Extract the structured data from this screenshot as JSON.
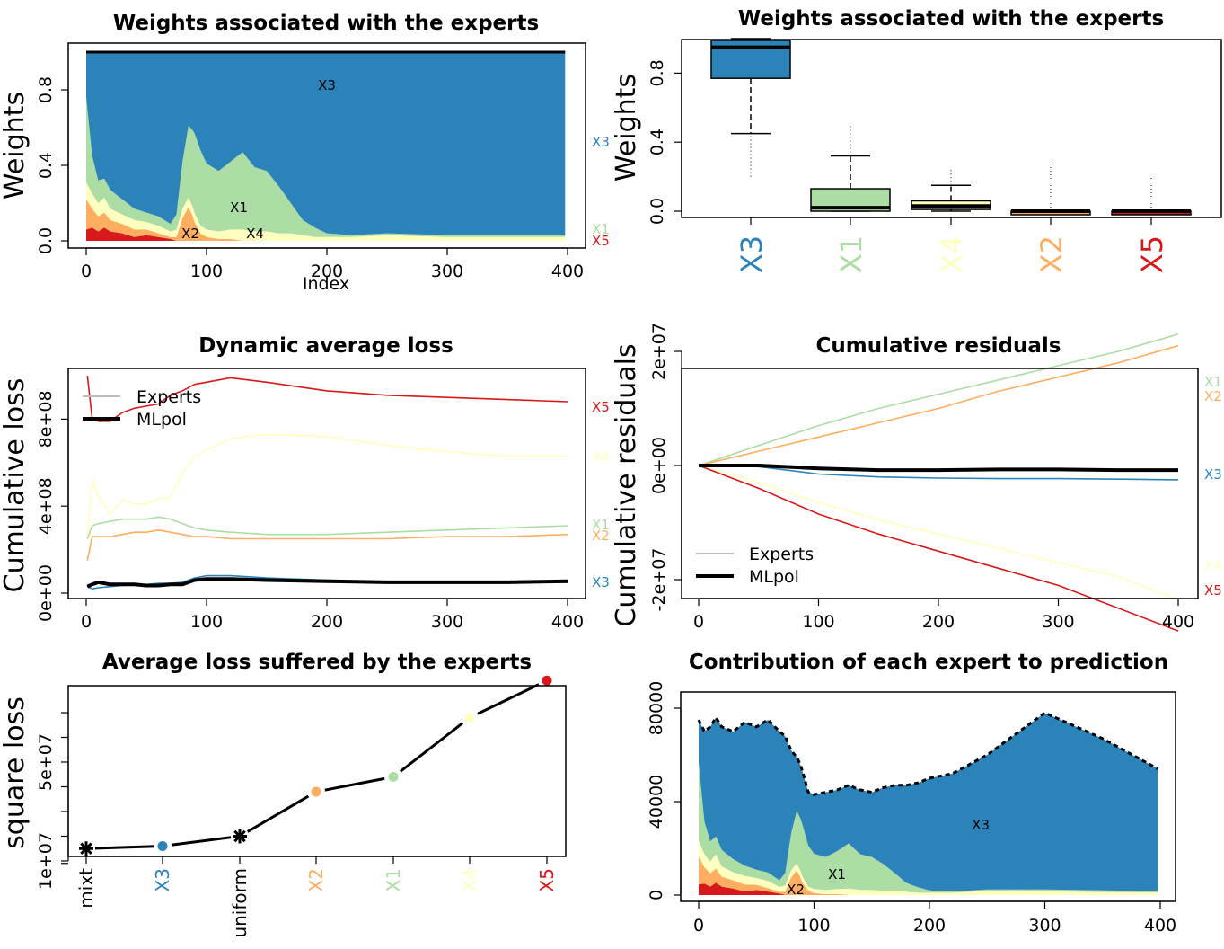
{
  "colors": {
    "X1": "#abdda4",
    "X2": "#fdae61",
    "X3": "#2b83ba",
    "X4": "#ffffbf",
    "X5": "#d7191c",
    "mlpol": "#000000",
    "experts_legend": "#bdbdbd"
  },
  "panels": {
    "p1": {
      "title": "Weights associated with the experts",
      "ylabel": "Weights",
      "xlabel": "Index",
      "xticks": [
        "0",
        "100",
        "200",
        "300",
        "400"
      ],
      "yticks": [
        "0.0",
        "0.4",
        "0.8"
      ],
      "inner_labels": {
        "X3": "X3",
        "X1": "X1",
        "X2": "X2",
        "X4": "X4"
      },
      "right_labels": {
        "X3": "X3",
        "X1": "X1",
        "X5": "X5"
      }
    },
    "p2": {
      "title": "Weights associated with the experts",
      "ylabel": "Weights",
      "yticks": [
        "0.0",
        "0.4",
        "0.8"
      ],
      "categories": [
        "X3",
        "X1",
        "X4",
        "X2",
        "X5"
      ]
    },
    "p3": {
      "title": "Dynamic average loss",
      "ylabel": "Cumulative loss",
      "xticks": [
        "0",
        "100",
        "200",
        "300",
        "400"
      ],
      "yticks": [
        "0e+00",
        "4e+08",
        "8e+08"
      ],
      "legend": [
        "Experts",
        "MLpol"
      ],
      "right_labels": {
        "X5": "X5",
        "X4": "X4",
        "X1": "X1",
        "X2": "X2",
        "X3": "X3"
      }
    },
    "p4": {
      "title": "Cumulative residuals",
      "ylabel": "Cumulative residuals",
      "xticks": [
        "0",
        "100",
        "200",
        "300",
        "400"
      ],
      "yticks": [
        "-2e+07",
        "0e+00",
        "2e+07"
      ],
      "legend": [
        "Experts",
        "MLpol"
      ],
      "right_labels": {
        "X1": "X1",
        "X2": "X2",
        "X3": "X3",
        "X4": "X4",
        "X5": "X5"
      }
    },
    "p5": {
      "title": "Average loss suffered by the experts",
      "ylabel": "square loss",
      "yticks": [
        "1e+07",
        "5e+07"
      ],
      "categories": [
        "mixt",
        "X3",
        "uniform",
        "X2",
        "X1",
        "X4",
        "X5"
      ]
    },
    "p6": {
      "title": "Contribution of each expert to prediction",
      "xticks": [
        "0",
        "100",
        "200",
        "300",
        "400"
      ],
      "yticks": [
        "0",
        "40000",
        "80000"
      ],
      "inner_labels": {
        "X3": "X3",
        "X1": "X1",
        "X2": "X2"
      }
    }
  },
  "chart_data": [
    {
      "type": "area",
      "title": "Weights associated with the experts",
      "xlabel": "Index",
      "ylabel": "Weights",
      "xlim": [
        0,
        400
      ],
      "ylim": [
        0,
        1
      ],
      "stack_order": [
        "X5",
        "X2",
        "X4",
        "X1",
        "X3"
      ],
      "x": [
        0,
        5,
        10,
        15,
        20,
        30,
        40,
        50,
        60,
        70,
        75,
        80,
        85,
        88,
        90,
        95,
        100,
        110,
        120,
        130,
        140,
        150,
        160,
        170,
        180,
        190,
        200,
        220,
        250,
        300,
        350,
        398
      ],
      "series": [
        {
          "name": "X5",
          "values": [
            0.06,
            0.07,
            0.05,
            0.07,
            0.05,
            0.04,
            0.02,
            0.03,
            0.02,
            0.01,
            0,
            0,
            0,
            0,
            0,
            0,
            0,
            0,
            0,
            0,
            0,
            0,
            0,
            0,
            0,
            0,
            0,
            0,
            0,
            0,
            0,
            0
          ]
        },
        {
          "name": "X2",
          "values": [
            0.16,
            0.1,
            0.08,
            0.08,
            0.06,
            0.05,
            0.04,
            0.03,
            0.02,
            0.01,
            0.02,
            0.12,
            0.18,
            0.14,
            0.1,
            0.04,
            0.02,
            0.01,
            0.01,
            0,
            0,
            0,
            0,
            0,
            0,
            0,
            0,
            0,
            0,
            0,
            0,
            0
          ]
        },
        {
          "name": "X4",
          "values": [
            0.09,
            0.08,
            0.07,
            0.08,
            0.06,
            0.05,
            0.05,
            0.04,
            0.04,
            0.03,
            0.04,
            0.05,
            0.05,
            0.05,
            0.05,
            0.04,
            0.04,
            0.04,
            0.05,
            0.06,
            0.05,
            0.05,
            0.04,
            0.04,
            0.03,
            0.02,
            0.02,
            0.02,
            0.03,
            0.02,
            0.02,
            0.02
          ]
        },
        {
          "name": "X1",
          "values": [
            0.45,
            0.2,
            0.12,
            0.1,
            0.1,
            0.08,
            0.06,
            0.05,
            0.05,
            0.04,
            0.08,
            0.25,
            0.38,
            0.4,
            0.42,
            0.4,
            0.35,
            0.32,
            0.36,
            0.41,
            0.34,
            0.32,
            0.25,
            0.16,
            0.08,
            0.05,
            0.02,
            0.01,
            0.01,
            0.01,
            0.01,
            0.01
          ]
        },
        {
          "name": "X3",
          "values": [
            0.24,
            0.55,
            0.68,
            0.67,
            0.73,
            0.78,
            0.83,
            0.85,
            0.87,
            0.91,
            0.86,
            0.58,
            0.39,
            0.41,
            0.43,
            0.52,
            0.59,
            0.63,
            0.58,
            0.53,
            0.61,
            0.63,
            0.71,
            0.8,
            0.89,
            0.93,
            0.96,
            0.97,
            0.96,
            0.97,
            0.97,
            0.97
          ]
        }
      ]
    },
    {
      "type": "box",
      "title": "Weights associated with the experts",
      "ylabel": "Weights",
      "ylim": [
        0,
        1
      ],
      "categories": [
        "X3",
        "X1",
        "X4",
        "X2",
        "X5"
      ],
      "series": [
        {
          "name": "X3",
          "min": 0.45,
          "q1": 0.77,
          "median": 0.95,
          "q3": 0.99,
          "max": 1.0,
          "outliers_low": 0.2
        },
        {
          "name": "X1",
          "min": 0.0,
          "q1": 0.0,
          "median": 0.02,
          "q3": 0.13,
          "max": 0.32,
          "outliers_high": 0.5
        },
        {
          "name": "X4",
          "min": 0.0,
          "q1": 0.01,
          "median": 0.03,
          "q3": 0.06,
          "max": 0.15,
          "outliers_high": 0.25
        },
        {
          "name": "X2",
          "min": 0.0,
          "q1": 0.0,
          "median": 0.0,
          "q3": 0.0,
          "max": 0.0,
          "outliers_high": 0.28
        },
        {
          "name": "X5",
          "min": 0.0,
          "q1": 0.0,
          "median": 0.0,
          "q3": 0.0,
          "max": 0.0,
          "outliers_high": 0.2
        }
      ]
    },
    {
      "type": "line",
      "title": "Dynamic average loss",
      "ylabel": "Cumulative loss",
      "xlim": [
        0,
        400
      ],
      "ylim": [
        0,
        1000000000.0
      ],
      "x": [
        1,
        5,
        10,
        20,
        30,
        40,
        50,
        60,
        70,
        80,
        90,
        100,
        120,
        150,
        200,
        250,
        300,
        350,
        400
      ],
      "series": [
        {
          "name": "X5",
          "values": [
            1000000000.0,
            800000000.0,
            790000000.0,
            790000000.0,
            830000000.0,
            850000000.0,
            860000000.0,
            870000000.0,
            910000000.0,
            930000000.0,
            960000000.0,
            970000000.0,
            990000000.0,
            970000000.0,
            930000000.0,
            910000000.0,
            900000000.0,
            890000000.0,
            880000000.0
          ]
        },
        {
          "name": "X4",
          "values": [
            250000000.0,
            520000000.0,
            450000000.0,
            360000000.0,
            430000000.0,
            410000000.0,
            410000000.0,
            430000000.0,
            440000000.0,
            550000000.0,
            630000000.0,
            660000000.0,
            710000000.0,
            730000000.0,
            720000000.0,
            680000000.0,
            650000000.0,
            630000000.0,
            630000000.0
          ]
        },
        {
          "name": "X1",
          "values": [
            250000000.0,
            310000000.0,
            320000000.0,
            330000000.0,
            340000000.0,
            340000000.0,
            340000000.0,
            350000000.0,
            340000000.0,
            320000000.0,
            300000000.0,
            290000000.0,
            280000000.0,
            270000000.0,
            270000000.0,
            280000000.0,
            290000000.0,
            300000000.0,
            310000000.0
          ]
        },
        {
          "name": "X2",
          "values": [
            150000000.0,
            260000000.0,
            260000000.0,
            260000000.0,
            270000000.0,
            280000000.0,
            280000000.0,
            290000000.0,
            280000000.0,
            270000000.0,
            260000000.0,
            260000000.0,
            250000000.0,
            250000000.0,
            250000000.0,
            250000000.0,
            260000000.0,
            260000000.0,
            270000000.0
          ]
        },
        {
          "name": "X3",
          "values": [
            30000000.0,
            20000000.0,
            25000000.0,
            30000000.0,
            35000000.0,
            40000000.0,
            40000000.0,
            45000000.0,
            45000000.0,
            50000000.0,
            70000000.0,
            80000000.0,
            80000000.0,
            70000000.0,
            60000000.0,
            50000000.0,
            50000000.0,
            50000000.0,
            50000000.0
          ]
        },
        {
          "name": "MLpol",
          "values": [
            30000000.0,
            40000000.0,
            50000000.0,
            40000000.0,
            40000000.0,
            40000000.0,
            35000000.0,
            35000000.0,
            40000000.0,
            40000000.0,
            60000000.0,
            65000000.0,
            65000000.0,
            60000000.0,
            55000000.0,
            50000000.0,
            50000000.0,
            50000000.0,
            55000000.0
          ]
        }
      ]
    },
    {
      "type": "line",
      "title": "Cumulative residuals",
      "ylabel": "Cumulative residuals",
      "xlim": [
        0,
        400
      ],
      "ylim": [
        -30000000.0,
        25000000.0
      ],
      "x": [
        0,
        50,
        100,
        150,
        200,
        250,
        300,
        350,
        400
      ],
      "series": [
        {
          "name": "X1",
          "values": [
            0,
            3500000.0,
            7000000.0,
            10000000.0,
            12500000.0,
            15000000.0,
            17500000.0,
            20000000.0,
            23000000.0
          ]
        },
        {
          "name": "X2",
          "values": [
            0,
            2500000.0,
            5000000.0,
            7500000.0,
            10000000.0,
            13000000.0,
            15500000.0,
            18000000.0,
            21000000.0
          ]
        },
        {
          "name": "X3",
          "values": [
            0,
            -200000.0,
            -1500000.0,
            -2000000.0,
            -2200000.0,
            -2300000.0,
            -2300000.0,
            -2400000.0,
            -2500000.0
          ]
        },
        {
          "name": "X4",
          "values": [
            0,
            -3000000.0,
            -6500000.0,
            -9500000.0,
            -12000000.0,
            -14500000.0,
            -17000000.0,
            -19500000.0,
            -23500000.0
          ]
        },
        {
          "name": "X5",
          "values": [
            0,
            -4000000.0,
            -8500000.0,
            -12000000.0,
            -15000000.0,
            -18000000.0,
            -21000000.0,
            -25000000.0,
            -29000000.0
          ]
        },
        {
          "name": "MLpol",
          "values": [
            0,
            0,
            -500000.0,
            -800000.0,
            -800000.0,
            -700000.0,
            -700000.0,
            -800000.0,
            -800000.0
          ]
        }
      ]
    },
    {
      "type": "line",
      "title": "Average loss suffered by the experts",
      "ylabel": "square loss",
      "ylim": [
        1000000.0,
        86000000.0
      ],
      "categories": [
        "mixt",
        "X3",
        "uniform",
        "X2",
        "X1",
        "X4",
        "X5"
      ],
      "values": [
        15000000.0,
        16000000.0,
        20000000.0,
        38000000.0,
        44000000.0,
        68000000.0,
        83000000.0
      ],
      "markers": [
        "star",
        "dot",
        "star",
        "dot",
        "dot",
        "dot",
        "dot"
      ]
    },
    {
      "type": "area",
      "title": "Contribution of each expert to prediction",
      "xlim": [
        0,
        400
      ],
      "ylim": [
        0,
        90000
      ],
      "stack_order": [
        "X5",
        "X2",
        "X4",
        "X1",
        "X3"
      ],
      "x": [
        0,
        5,
        10,
        15,
        20,
        30,
        40,
        50,
        60,
        70,
        75,
        80,
        85,
        88,
        90,
        95,
        100,
        110,
        120,
        130,
        140,
        150,
        160,
        170,
        180,
        190,
        200,
        220,
        250,
        300,
        350,
        398
      ],
      "total": [
        75000,
        70000,
        72000,
        76000,
        72000,
        70000,
        74000,
        72000,
        75000,
        70000,
        68000,
        62000,
        59000,
        56000,
        53000,
        44000,
        43000,
        44000,
        45000,
        47000,
        45000,
        44000,
        46000,
        47000,
        47000,
        48000,
        50000,
        52000,
        60000,
        78000,
        67000,
        54000
      ],
      "series": [
        {
          "name": "X5",
          "values": [
            4500,
            4900,
            3600,
            5300,
            3600,
            2800,
            1500,
            2200,
            1500,
            700,
            0,
            0,
            0,
            0,
            0,
            0,
            0,
            0,
            0,
            0,
            0,
            0,
            0,
            0,
            0,
            0,
            0,
            0,
            0,
            0,
            0,
            0
          ]
        },
        {
          "name": "X2",
          "values": [
            12000,
            7000,
            5800,
            6100,
            4300,
            3500,
            3000,
            2200,
            1500,
            700,
            1400,
            7400,
            10600,
            7800,
            5300,
            1800,
            900,
            400,
            400,
            0,
            0,
            0,
            0,
            0,
            0,
            0,
            0,
            0,
            0,
            0,
            0,
            0
          ]
        },
        {
          "name": "X4",
          "values": [
            6800,
            5600,
            5000,
            6100,
            4300,
            3500,
            3700,
            2900,
            3000,
            2100,
            2700,
            3100,
            3000,
            2800,
            2600,
            1800,
            1700,
            1800,
            2200,
            2800,
            2200,
            2200,
            1800,
            1900,
            1400,
            1000,
            1000,
            1000,
            1800,
            1600,
            1300,
            1100
          ]
        },
        {
          "name": "X1",
          "values": [
            33700,
            14000,
            8600,
            7600,
            7200,
            5600,
            4400,
            3600,
            3700,
            2800,
            5400,
            15500,
            22400,
            22400,
            22300,
            17600,
            15100,
            14100,
            16200,
            19300,
            15300,
            14100,
            11500,
            7500,
            3800,
            2400,
            1000,
            500,
            600,
            800,
            700,
            500
          ]
        },
        {
          "name": "X3",
          "values": [
            18000,
            38500,
            49000,
            50900,
            52600,
            54600,
            61400,
            61100,
            65300,
            63700,
            58500,
            36000,
            23000,
            23000,
            22800,
            22900,
            25400,
            27700,
            26200,
            24900,
            27500,
            27700,
            32700,
            37600,
            41800,
            44600,
            48000,
            50500,
            57600,
            75600,
            65000,
            52400
          ]
        }
      ]
    }
  ]
}
